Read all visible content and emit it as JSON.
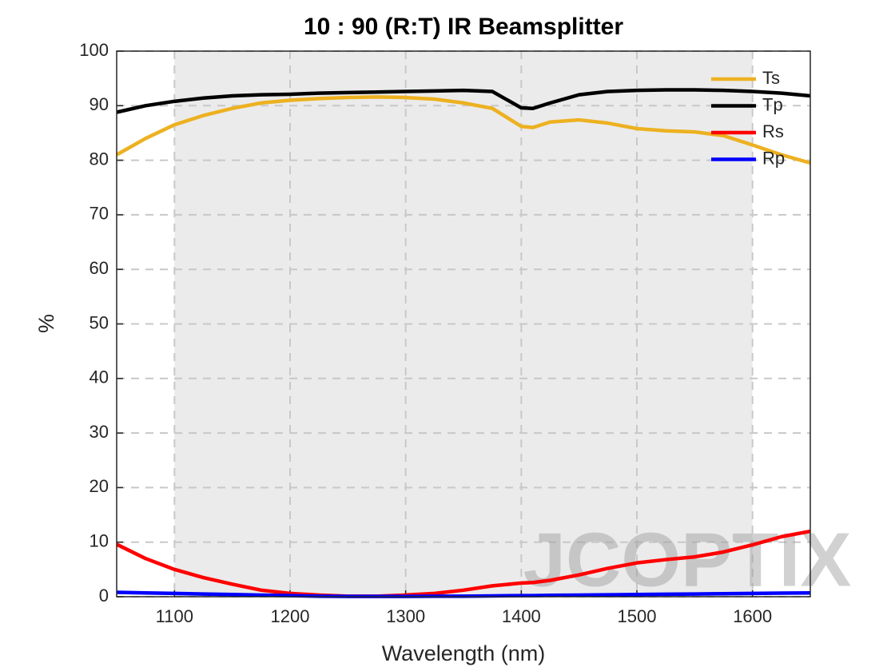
{
  "chart_data": {
    "type": "line",
    "title": "10 : 90 (R:T) IR Beamsplitter",
    "xlabel": "Wavelength (nm)",
    "ylabel": "%",
    "watermark": "JCOPTIX",
    "x": [
      1050,
      1075,
      1100,
      1125,
      1150,
      1175,
      1200,
      1225,
      1250,
      1275,
      1300,
      1325,
      1350,
      1375,
      1400,
      1410,
      1425,
      1450,
      1475,
      1500,
      1525,
      1550,
      1575,
      1600,
      1625,
      1650
    ],
    "series": [
      {
        "name": "Ts",
        "color": "#edb120",
        "values": [
          81,
          84,
          86.5,
          88.2,
          89.5,
          90.5,
          91,
          91.3,
          91.5,
          91.6,
          91.5,
          91.2,
          90.5,
          89.5,
          86.2,
          86,
          87,
          87.4,
          86.8,
          85.8,
          85.4,
          85.2,
          84.5,
          82.8,
          81,
          79.5
        ]
      },
      {
        "name": "Tp",
        "color": "#000000",
        "values": [
          88.8,
          90,
          90.8,
          91.4,
          91.8,
          92,
          92.1,
          92.3,
          92.4,
          92.5,
          92.6,
          92.7,
          92.8,
          92.6,
          89.6,
          89.5,
          90.5,
          92,
          92.6,
          92.8,
          92.9,
          92.9,
          92.8,
          92.6,
          92.3,
          91.8
        ]
      },
      {
        "name": "Rs",
        "color": "#ff0000",
        "values": [
          9.6,
          7,
          5,
          3.5,
          2.3,
          1.2,
          0.6,
          0.3,
          0.1,
          0.1,
          0.3,
          0.6,
          1.2,
          2,
          2.5,
          2.6,
          3,
          4,
          5.2,
          6.2,
          6.8,
          7.3,
          8.2,
          9.5,
          11,
          12
        ]
      },
      {
        "name": "Rp",
        "color": "#0000ff",
        "values": [
          0.8,
          0.7,
          0.6,
          0.5,
          0.4,
          0.3,
          0.2,
          0.1,
          0.05,
          0.05,
          0.05,
          0.1,
          0.1,
          0.15,
          0.2,
          0.2,
          0.25,
          0.3,
          0.35,
          0.4,
          0.45,
          0.5,
          0.55,
          0.6,
          0.65,
          0.7
        ]
      }
    ],
    "xlim": [
      1050,
      1650
    ],
    "ylim": [
      0,
      100
    ],
    "xticks": [
      1100,
      1200,
      1300,
      1400,
      1500,
      1600
    ],
    "yticks": [
      0,
      10,
      20,
      30,
      40,
      50,
      60,
      70,
      80,
      90,
      100
    ],
    "grid": true,
    "shaded_range": [
      1100,
      1600
    ],
    "legend": "top-right"
  }
}
